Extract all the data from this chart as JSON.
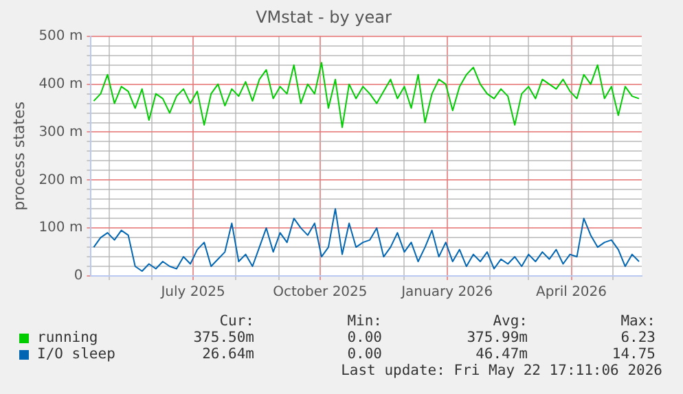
{
  "chart_data": {
    "type": "line",
    "title": "VMstat - by year",
    "ylabel": "process states",
    "x": [
      "2025-04-20",
      "2025-04-25",
      "2025-04-30",
      "2025-05-05",
      "2025-05-10",
      "2025-05-15",
      "2025-05-20",
      "2025-05-25",
      "2025-05-30",
      "2025-06-04",
      "2025-06-09",
      "2025-06-14",
      "2025-06-19",
      "2025-06-24",
      "2025-06-29",
      "2025-07-04",
      "2025-07-09",
      "2025-07-14",
      "2025-07-19",
      "2025-07-24",
      "2025-07-29",
      "2025-08-03",
      "2025-08-08",
      "2025-08-13",
      "2025-08-18",
      "2025-08-23",
      "2025-08-28",
      "2025-09-02",
      "2025-09-07",
      "2025-09-12",
      "2025-09-17",
      "2025-09-22",
      "2025-09-27",
      "2025-10-02",
      "2025-10-07",
      "2025-10-12",
      "2025-10-17",
      "2025-10-22",
      "2025-10-27",
      "2025-11-01",
      "2025-11-06",
      "2025-11-11",
      "2025-11-16",
      "2025-11-21",
      "2025-11-26",
      "2025-12-01",
      "2025-12-06",
      "2025-12-11",
      "2025-12-16",
      "2025-12-21",
      "2025-12-26",
      "2025-12-31",
      "2026-01-05",
      "2026-01-10",
      "2026-01-15",
      "2026-01-20",
      "2026-01-25",
      "2026-01-30",
      "2026-02-04",
      "2026-02-09",
      "2026-02-14",
      "2026-02-19",
      "2026-02-24",
      "2026-03-01",
      "2026-03-06",
      "2026-03-11",
      "2026-03-16",
      "2026-03-21",
      "2026-03-26",
      "2026-03-31",
      "2026-04-05",
      "2026-04-10",
      "2026-04-15",
      "2026-04-20",
      "2026-04-25",
      "2026-04-30",
      "2026-05-05",
      "2026-05-10",
      "2026-05-15",
      "2026-05-20"
    ],
    "series": [
      {
        "name": "running",
        "color": "#00cc00",
        "values": [
          365,
          380,
          420,
          360,
          395,
          385,
          350,
          390,
          325,
          380,
          370,
          340,
          375,
          390,
          360,
          385,
          315,
          380,
          400,
          355,
          390,
          375,
          405,
          365,
          410,
          430,
          370,
          395,
          380,
          440,
          360,
          400,
          380,
          445,
          350,
          410,
          310,
          400,
          370,
          395,
          380,
          360,
          385,
          410,
          370,
          395,
          350,
          420,
          320,
          380,
          410,
          400,
          345,
          395,
          420,
          435,
          400,
          380,
          370,
          390,
          375,
          315,
          380,
          395,
          370,
          410,
          400,
          390,
          410,
          385,
          370,
          420,
          400,
          440,
          370,
          395,
          335,
          395,
          375,
          370
        ]
      },
      {
        "name": "I/O sleep",
        "color": "#0066b3",
        "values": [
          60,
          80,
          90,
          75,
          95,
          85,
          20,
          10,
          25,
          15,
          30,
          20,
          15,
          40,
          25,
          55,
          70,
          20,
          35,
          50,
          110,
          30,
          45,
          20,
          60,
          100,
          50,
          90,
          70,
          120,
          100,
          85,
          110,
          40,
          60,
          140,
          45,
          110,
          60,
          70,
          75,
          100,
          40,
          60,
          90,
          50,
          70,
          30,
          60,
          95,
          40,
          70,
          30,
          55,
          20,
          45,
          30,
          50,
          15,
          35,
          25,
          40,
          20,
          45,
          30,
          50,
          35,
          55,
          25,
          45,
          40,
          120,
          85,
          60,
          70,
          75,
          55,
          20,
          45,
          30
        ]
      }
    ],
    "xlim": [
      "2025-04-18",
      "2026-05-22"
    ],
    "xticks": [
      {
        "value": "2025-05-01",
        "label": null
      },
      {
        "value": "2025-06-01",
        "label": null
      },
      {
        "value": "2025-07-01",
        "label": "July 2025"
      },
      {
        "value": "2025-08-01",
        "label": null
      },
      {
        "value": "2025-09-01",
        "label": null
      },
      {
        "value": "2025-10-01",
        "label": "October 2025"
      },
      {
        "value": "2025-11-01",
        "label": null
      },
      {
        "value": "2025-12-01",
        "label": null
      },
      {
        "value": "2026-01-01",
        "label": "January 2026"
      },
      {
        "value": "2026-02-01",
        "label": null
      },
      {
        "value": "2026-03-01",
        "label": null
      },
      {
        "value": "2026-04-01",
        "label": "April 2026"
      },
      {
        "value": "2026-05-01",
        "label": null
      }
    ],
    "ylim": [
      0,
      500
    ],
    "yticks": [
      0,
      {
        "value": 20,
        "label": null
      },
      {
        "value": 40,
        "label": null
      },
      {
        "value": 60,
        "label": null
      },
      {
        "value": 80,
        "label": null
      },
      {
        "value": 100,
        "label": "100 m"
      },
      {
        "value": 120,
        "label": null
      },
      {
        "value": 140,
        "label": null
      },
      {
        "value": 160,
        "label": null
      },
      {
        "value": 180,
        "label": null
      },
      {
        "value": 200,
        "label": "200 m"
      },
      {
        "value": 220,
        "label": null
      },
      {
        "value": 240,
        "label": null
      },
      {
        "value": 260,
        "label": null
      },
      {
        "value": 280,
        "label": null
      },
      {
        "value": 300,
        "label": "300 m"
      },
      {
        "value": 320,
        "label": null
      },
      {
        "value": 340,
        "label": null
      },
      {
        "value": 360,
        "label": null
      },
      {
        "value": 380,
        "label": null
      },
      {
        "value": 400,
        "label": "400 m"
      },
      {
        "value": 420,
        "label": null
      },
      {
        "value": 440,
        "label": null
      },
      {
        "value": 460,
        "label": null
      },
      {
        "value": 480,
        "label": null
      },
      {
        "value": 500,
        "label": "500 m"
      }
    ],
    "grid": true,
    "legend": "bottom",
    "marker": "none",
    "line_style": "solid",
    "annotations": [
      "Cur:",
      "Min:",
      "Avg:",
      "Max:",
      "375.50m",
      "0.00",
      "375.99m",
      "6.23",
      "26.64m",
      "0.00",
      "46.47m",
      "14.75",
      "Last update: Fri May 22 17:11:06 2026"
    ]
  }
}
